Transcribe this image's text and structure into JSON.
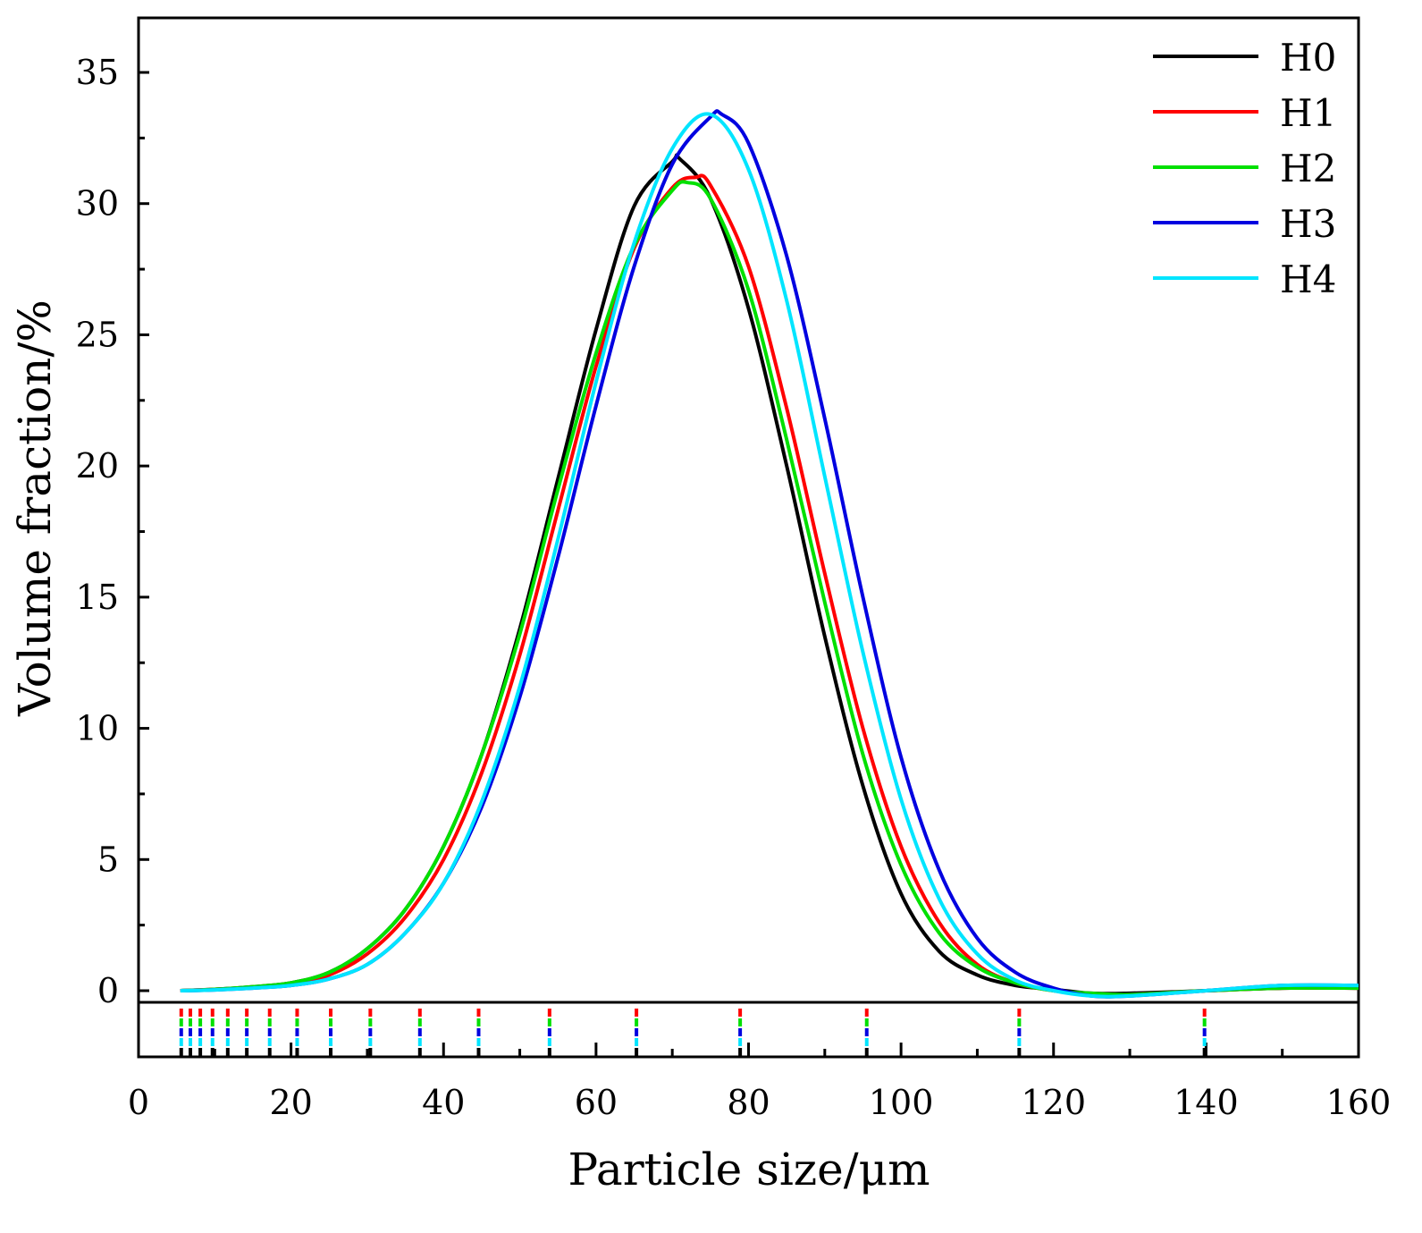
{
  "chart_data": {
    "type": "line",
    "xlabel": "Particle size/μm",
    "ylabel": "Volume fraction/%",
    "xlim": [
      0,
      160
    ],
    "ylim": [
      -0.5,
      37
    ],
    "x_ticks": [
      0,
      20,
      40,
      60,
      80,
      100,
      120,
      140,
      160
    ],
    "x_tick_labels": [
      "0",
      "20",
      "40",
      "60",
      "80",
      "100",
      "120",
      "140",
      "160"
    ],
    "y_ticks": [
      0,
      5,
      10,
      15,
      20,
      25,
      30,
      35
    ],
    "y_tick_labels": [
      "0",
      "5",
      "10",
      "15",
      "20",
      "25",
      "30",
      "35"
    ],
    "legend_position": "top-right",
    "grid": false,
    "rug_positions": [
      5.6,
      6.8,
      8.1,
      9.7,
      11.7,
      14.2,
      17.2,
      20.8,
      25.2,
      30.4,
      36.9,
      44.6,
      53.9,
      65.3,
      78.9,
      95.5,
      115.5,
      139.8
    ],
    "series": [
      {
        "name": "H0",
        "color": "#000000",
        "x": [
          5.5,
          10,
          15,
          20,
          25,
          30,
          35,
          40,
          45,
          50,
          55,
          60,
          65,
          70,
          71,
          75,
          80,
          85,
          90,
          95,
          100,
          105,
          110,
          115,
          120,
          125,
          130,
          140,
          150,
          160
        ],
        "y": [
          0,
          0.05,
          0.15,
          0.3,
          0.7,
          1.6,
          3.1,
          5.5,
          9.0,
          13.8,
          19.5,
          25.2,
          29.9,
          31.6,
          31.7,
          30.2,
          26.0,
          20.0,
          13.5,
          7.8,
          3.7,
          1.5,
          0.6,
          0.2,
          0.05,
          -0.1,
          -0.1,
          0.0,
          0.1,
          0.1
        ]
      },
      {
        "name": "H1",
        "color": "#ff0000",
        "x": [
          5.5,
          10,
          15,
          20,
          25,
          30,
          35,
          40,
          45,
          50,
          55,
          60,
          65,
          70,
          73,
          75,
          80,
          85,
          90,
          95,
          100,
          105,
          110,
          115,
          120,
          125,
          130,
          140,
          150,
          160
        ],
        "y": [
          0,
          0.05,
          0.12,
          0.25,
          0.6,
          1.4,
          2.8,
          5.0,
          8.3,
          12.8,
          18.3,
          23.8,
          28.3,
          30.6,
          31.0,
          30.7,
          27.6,
          22.2,
          15.9,
          10.0,
          5.5,
          2.6,
          1.0,
          0.3,
          0.0,
          -0.15,
          -0.15,
          0.0,
          0.1,
          0.1
        ]
      },
      {
        "name": "H2",
        "color": "#00e000",
        "x": [
          5.5,
          10,
          15,
          20,
          25,
          30,
          35,
          40,
          45,
          50,
          55,
          60,
          65,
          70,
          72,
          75,
          80,
          85,
          90,
          95,
          100,
          105,
          110,
          115,
          120,
          125,
          130,
          140,
          150,
          160
        ],
        "y": [
          0,
          0.05,
          0.15,
          0.3,
          0.7,
          1.6,
          3.1,
          5.5,
          9.0,
          13.6,
          19.1,
          24.3,
          28.4,
          30.5,
          30.8,
          30.2,
          26.7,
          21.0,
          14.8,
          9.0,
          4.8,
          2.2,
          0.9,
          0.3,
          0.0,
          -0.1,
          -0.15,
          0.0,
          0.1,
          0.1
        ]
      },
      {
        "name": "H3",
        "color": "#0000e0",
        "x": [
          5.5,
          10,
          15,
          20,
          25,
          30,
          35,
          40,
          45,
          50,
          55,
          60,
          65,
          70,
          75,
          76.5,
          80,
          85,
          90,
          95,
          100,
          105,
          110,
          115,
          120,
          125,
          130,
          140,
          150,
          160
        ],
        "y": [
          0,
          0.03,
          0.1,
          0.2,
          0.45,
          1.0,
          2.2,
          4.1,
          7.0,
          11.2,
          16.5,
          22.3,
          27.6,
          31.5,
          33.3,
          33.4,
          32.3,
          28.0,
          21.8,
          15.0,
          8.9,
          4.6,
          2.0,
          0.7,
          0.1,
          -0.2,
          -0.2,
          0.0,
          0.2,
          0.2
        ]
      },
      {
        "name": "H4",
        "color": "#00e5ff",
        "x": [
          5.5,
          10,
          15,
          20,
          25,
          30,
          35,
          40,
          45,
          50,
          55,
          60,
          65,
          70,
          75,
          80,
          85,
          90,
          95,
          100,
          105,
          110,
          115,
          120,
          125,
          130,
          140,
          150,
          160
        ],
        "y": [
          0,
          0.03,
          0.1,
          0.2,
          0.45,
          1.0,
          2.2,
          4.1,
          7.2,
          11.6,
          17.2,
          23.2,
          28.5,
          32.1,
          33.4,
          31.3,
          26.3,
          19.6,
          12.9,
          7.3,
          3.5,
          1.4,
          0.4,
          0.0,
          -0.2,
          -0.2,
          0.0,
          0.2,
          0.2
        ]
      }
    ]
  }
}
